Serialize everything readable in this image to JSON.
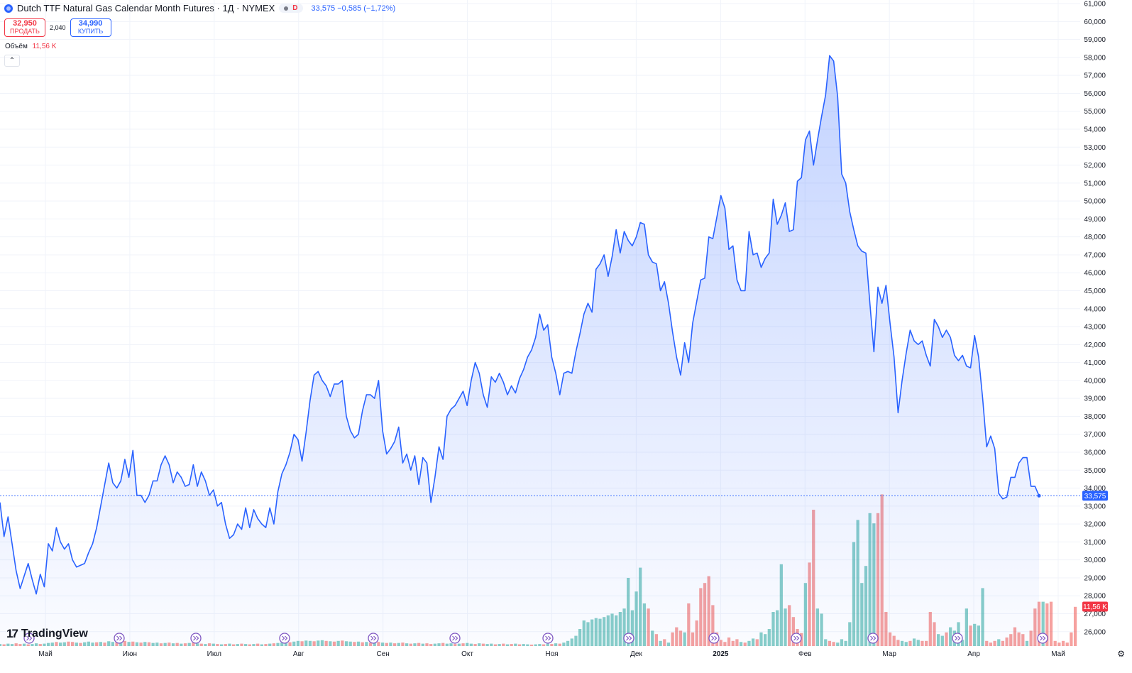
{
  "header": {
    "title": "Dutch TTF Natural Gas Calendar Month Futures · 1Д · NYMEX",
    "status_letter": "D",
    "price_info": "33,575  −0,585 (−1,72%)"
  },
  "trade": {
    "sell_price": "32,950",
    "sell_label": "ПРОДАТЬ",
    "spread": "2,040",
    "buy_price": "34,990",
    "buy_label": "КУПИТЬ"
  },
  "volume_legend": {
    "label": "Объём",
    "value": "11,56 K"
  },
  "collapse_icon": "chevron-up-icon",
  "logo": {
    "text": "TradingView",
    "mark": "17"
  },
  "settings_icon": "gear-icon",
  "colors": {
    "line": "#2962ff",
    "vol_up": "#26a69a",
    "vol_down": "#ef5350",
    "last_price": "#2962ff",
    "vol_badge": "#f23645"
  },
  "chart_data": {
    "type": "area",
    "title": "Dutch TTF Natural Gas Calendar Month Futures · 1Д · NYMEX",
    "ylim": [
      25.2,
      61.2
    ],
    "yticks": [
      "61,000",
      "60,000",
      "59,000",
      "58,000",
      "57,000",
      "56,000",
      "55,000",
      "54,000",
      "53,000",
      "52,000",
      "51,000",
      "50,000",
      "49,000",
      "48,000",
      "47,000",
      "46,000",
      "45,000",
      "44,000",
      "43,000",
      "42,000",
      "41,000",
      "40,000",
      "39,000",
      "38,000",
      "37,000",
      "36,000",
      "35,000",
      "34,000",
      "33,000",
      "32,000",
      "31,000",
      "30,000",
      "29,000",
      "28,000",
      "27,000",
      "26,000"
    ],
    "x_labels": [
      "Май",
      "Июн",
      "Июл",
      "Авг",
      "Сен",
      "Окт",
      "Ноя",
      "Дек",
      "2025",
      "Фев",
      "Мар",
      "Апр",
      "Май"
    ],
    "last_price": 33.575,
    "last_price_label": "33,575",
    "volume_label": "11,56 K",
    "volume_value": 11.56,
    "volume_max": 50,
    "grid": true,
    "series": [
      {
        "values": [
          33.2,
          31.3,
          32.4,
          30.9,
          29.4,
          28.4,
          29.1,
          29.8,
          28.9,
          28.1,
          29.2,
          28.5,
          30.9,
          30.5,
          31.8,
          31.0,
          30.6,
          30.9,
          30.0,
          29.6,
          29.7,
          29.8,
          30.4,
          30.9,
          31.8,
          33.0,
          34.2,
          35.4,
          34.3,
          34.0,
          34.4,
          35.6,
          34.6,
          36.1,
          33.6,
          33.6,
          33.2,
          33.6,
          34.4,
          34.4,
          35.3,
          35.8,
          35.3,
          34.3,
          34.9,
          34.6,
          34.1,
          34.2,
          35.3,
          34.1,
          34.9,
          34.4,
          33.6,
          33.9,
          33.0,
          33.2,
          32.0,
          31.2,
          31.4,
          32.0,
          31.7,
          32.9,
          31.8,
          32.8,
          32.3,
          32.0,
          31.8,
          32.9,
          32.0,
          33.8,
          34.8,
          35.3,
          36.0,
          37.0,
          36.7,
          35.5,
          37.1,
          38.9,
          40.3,
          40.5,
          40.0,
          39.7,
          39.1,
          39.8,
          39.8,
          40.0,
          38.0,
          37.2,
          36.8,
          37.0,
          38.3,
          39.2,
          39.2,
          39.0,
          40.0,
          37.2,
          35.9,
          36.2,
          36.6,
          37.4,
          35.4,
          35.9,
          35.0,
          35.8,
          34.2,
          35.7,
          35.4,
          33.2,
          34.6,
          36.3,
          35.6,
          38.0,
          38.4,
          38.6,
          39.0,
          39.4,
          38.6,
          40.0,
          41.0,
          40.4,
          39.2,
          38.5,
          40.2,
          39.9,
          40.4,
          39.9,
          39.2,
          39.7,
          39.3,
          40.1,
          40.6,
          41.3,
          41.7,
          42.4,
          43.7,
          42.8,
          43.1,
          41.3,
          40.4,
          39.2,
          40.4,
          40.5,
          40.4,
          41.6,
          42.6,
          43.7,
          44.3,
          43.8,
          46.2,
          46.5,
          47.0,
          45.8,
          46.9,
          48.4,
          47.1,
          48.3,
          47.8,
          47.5,
          48.0,
          48.8,
          48.7,
          47.0,
          46.6,
          46.5,
          45.0,
          45.5,
          44.3,
          42.7,
          41.3,
          40.3,
          42.1,
          41.0,
          43.2,
          44.4,
          45.6,
          45.7,
          48.0,
          47.9,
          49.1,
          50.3,
          49.6,
          47.3,
          47.5,
          45.6,
          45.0,
          45.0,
          48.3,
          47.0,
          47.1,
          46.3,
          46.8,
          47.1,
          50.1,
          48.7,
          49.2,
          49.9,
          48.3,
          48.4,
          51.1,
          51.3,
          53.4,
          53.9,
          52.0,
          53.4,
          54.7,
          55.9,
          58.1,
          57.8,
          55.8,
          51.5,
          51.0,
          49.4,
          48.4,
          47.5,
          47.2,
          47.1,
          44.3,
          41.6,
          45.2,
          44.3,
          45.3,
          43.2,
          41.3,
          38.2,
          40.0,
          41.5,
          42.8,
          42.2,
          42.0,
          42.2,
          41.4,
          40.8,
          43.4,
          43.0,
          42.4,
          42.8,
          42.4,
          41.4,
          41.1,
          41.4,
          40.8,
          40.7,
          42.5,
          41.3,
          39.0,
          36.3,
          36.9,
          36.2,
          33.7,
          33.4,
          33.5,
          34.6,
          34.6,
          35.4,
          35.7,
          35.7,
          34.1,
          34.1,
          33.575
        ]
      }
    ],
    "volume": [
      [
        "u",
        0.6
      ],
      [
        "d",
        0.5
      ],
      [
        "u",
        0.7
      ],
      [
        "u",
        0.6
      ],
      [
        "d",
        0.8
      ],
      [
        "d",
        0.6
      ],
      [
        "u",
        0.7
      ],
      [
        "d",
        0.5
      ],
      [
        "u",
        0.6
      ],
      [
        "u",
        0.8
      ],
      [
        "d",
        0.6
      ],
      [
        "u",
        0.7
      ],
      [
        "u",
        0.9
      ],
      [
        "u",
        1.0
      ],
      [
        "d",
        1.2
      ],
      [
        "u",
        1.0
      ],
      [
        "u",
        1.1
      ],
      [
        "d",
        1.3
      ],
      [
        "d",
        1.2
      ],
      [
        "u",
        1.0
      ],
      [
        "d",
        0.9
      ],
      [
        "u",
        1.1
      ],
      [
        "u",
        1.3
      ],
      [
        "u",
        1.0
      ],
      [
        "d",
        1.1
      ],
      [
        "u",
        1.2
      ],
      [
        "d",
        1.0
      ],
      [
        "u",
        1.4
      ],
      [
        "u",
        1.2
      ],
      [
        "d",
        1.1
      ],
      [
        "u",
        1.3
      ],
      [
        "d",
        1.5
      ],
      [
        "u",
        1.2
      ],
      [
        "d",
        1.3
      ],
      [
        "u",
        1.1
      ],
      [
        "d",
        1.0
      ],
      [
        "u",
        1.2
      ],
      [
        "d",
        1.1
      ],
      [
        "u",
        0.9
      ],
      [
        "u",
        1.0
      ],
      [
        "d",
        0.8
      ],
      [
        "u",
        0.9
      ],
      [
        "d",
        1.0
      ],
      [
        "u",
        0.8
      ],
      [
        "d",
        0.9
      ],
      [
        "u",
        0.7
      ],
      [
        "d",
        0.8
      ],
      [
        "u",
        0.9
      ],
      [
        "d",
        1.0
      ],
      [
        "u",
        0.8
      ],
      [
        "d",
        0.7
      ],
      [
        "u",
        0.6
      ],
      [
        "d",
        0.8
      ],
      [
        "u",
        0.7
      ],
      [
        "d",
        0.6
      ],
      [
        "u",
        0.5
      ],
      [
        "d",
        0.6
      ],
      [
        "u",
        0.7
      ],
      [
        "d",
        0.5
      ],
      [
        "u",
        0.6
      ],
      [
        "d",
        0.7
      ],
      [
        "u",
        0.6
      ],
      [
        "d",
        0.5
      ],
      [
        "u",
        0.6
      ],
      [
        "d",
        0.7
      ],
      [
        "u",
        0.5
      ],
      [
        "d",
        0.6
      ],
      [
        "u",
        0.7
      ],
      [
        "d",
        0.8
      ],
      [
        "u",
        0.9
      ],
      [
        "u",
        1.0
      ],
      [
        "u",
        1.2
      ],
      [
        "d",
        1.1
      ],
      [
        "u",
        1.3
      ],
      [
        "u",
        1.5
      ],
      [
        "d",
        1.4
      ],
      [
        "u",
        1.6
      ],
      [
        "u",
        1.5
      ],
      [
        "d",
        1.4
      ],
      [
        "u",
        1.6
      ],
      [
        "u",
        1.7
      ],
      [
        "d",
        1.5
      ],
      [
        "u",
        1.4
      ],
      [
        "d",
        1.3
      ],
      [
        "u",
        1.5
      ],
      [
        "d",
        1.6
      ],
      [
        "u",
        1.4
      ],
      [
        "u",
        1.3
      ],
      [
        "d",
        1.2
      ],
      [
        "u",
        1.3
      ],
      [
        "d",
        1.1
      ],
      [
        "u",
        1.2
      ],
      [
        "d",
        1.0
      ],
      [
        "u",
        1.1
      ],
      [
        "d",
        1.2
      ],
      [
        "u",
        1.0
      ],
      [
        "d",
        0.9
      ],
      [
        "u",
        1.0
      ],
      [
        "d",
        0.8
      ],
      [
        "u",
        0.9
      ],
      [
        "d",
        1.0
      ],
      [
        "u",
        0.8
      ],
      [
        "d",
        0.7
      ],
      [
        "u",
        0.8
      ],
      [
        "d",
        0.9
      ],
      [
        "u",
        0.7
      ],
      [
        "d",
        0.8
      ],
      [
        "d",
        0.6
      ],
      [
        "u",
        0.7
      ],
      [
        "u",
        0.8
      ],
      [
        "d",
        0.9
      ],
      [
        "u",
        0.7
      ],
      [
        "u",
        0.8
      ],
      [
        "d",
        0.6
      ],
      [
        "u",
        0.7
      ],
      [
        "d",
        0.8
      ],
      [
        "u",
        0.9
      ],
      [
        "u",
        0.7
      ],
      [
        "d",
        0.6
      ],
      [
        "u",
        0.8
      ],
      [
        "d",
        0.7
      ],
      [
        "u",
        0.6
      ],
      [
        "u",
        0.7
      ],
      [
        "d",
        0.5
      ],
      [
        "u",
        0.6
      ],
      [
        "d",
        0.7
      ],
      [
        "u",
        0.5
      ],
      [
        "d",
        0.6
      ],
      [
        "u",
        0.7
      ],
      [
        "d",
        0.5
      ],
      [
        "u",
        0.6
      ],
      [
        "u",
        0.5
      ],
      [
        "d",
        0.4
      ],
      [
        "u",
        0.5
      ],
      [
        "u",
        0.6
      ],
      [
        "d",
        0.5
      ],
      [
        "u",
        0.7
      ],
      [
        "d",
        0.6
      ],
      [
        "u",
        0.8
      ],
      [
        "d",
        0.7
      ],
      [
        "u",
        1.0
      ],
      [
        "u",
        1.5
      ],
      [
        "u",
        2.2
      ],
      [
        "u",
        3.0
      ],
      [
        "u",
        5.0
      ],
      [
        "u",
        7.5
      ],
      [
        "u",
        7.0
      ],
      [
        "u",
        7.8
      ],
      [
        "u",
        8.2
      ],
      [
        "u",
        8.0
      ],
      [
        "u",
        8.5
      ],
      [
        "u",
        9.0
      ],
      [
        "u",
        9.5
      ],
      [
        "u",
        9.0
      ],
      [
        "u",
        10.0
      ],
      [
        "u",
        11.0
      ],
      [
        "u",
        20.0
      ],
      [
        "u",
        10.5
      ],
      [
        "u",
        16.0
      ],
      [
        "u",
        23.0
      ],
      [
        "u",
        12.5
      ],
      [
        "d",
        11.0
      ],
      [
        "u",
        4.5
      ],
      [
        "d",
        3.5
      ],
      [
        "u",
        1.5
      ],
      [
        "d",
        2.0
      ],
      [
        "u",
        1.0
      ],
      [
        "d",
        4.0
      ],
      [
        "d",
        5.5
      ],
      [
        "d",
        4.5
      ],
      [
        "u",
        4.0
      ],
      [
        "d",
        12.5
      ],
      [
        "d",
        4.0
      ],
      [
        "d",
        7.5
      ],
      [
        "d",
        17.0
      ],
      [
        "d",
        18.5
      ],
      [
        "d",
        20.5
      ],
      [
        "d",
        12.0
      ],
      [
        "d",
        4.0
      ],
      [
        "d",
        1.8
      ],
      [
        "d",
        1.2
      ],
      [
        "d",
        2.5
      ],
      [
        "d",
        1.5
      ],
      [
        "d",
        2.0
      ],
      [
        "u",
        1.2
      ],
      [
        "d",
        1.0
      ],
      [
        "u",
        1.5
      ],
      [
        "u",
        2.2
      ],
      [
        "d",
        2.0
      ],
      [
        "u",
        4.0
      ],
      [
        "u",
        3.5
      ],
      [
        "u",
        5.0
      ],
      [
        "u",
        10.0
      ],
      [
        "u",
        10.5
      ],
      [
        "u",
        24.0
      ],
      [
        "u",
        11.0
      ],
      [
        "d",
        12.0
      ],
      [
        "d",
        8.5
      ],
      [
        "d",
        5.0
      ],
      [
        "d",
        3.8
      ],
      [
        "u",
        18.5
      ],
      [
        "d",
        24.5
      ],
      [
        "d",
        40.0
      ],
      [
        "u",
        11.0
      ],
      [
        "u",
        9.5
      ],
      [
        "u",
        2.0
      ],
      [
        "d",
        1.5
      ],
      [
        "d",
        1.2
      ],
      [
        "u",
        1.0
      ],
      [
        "u",
        2.0
      ],
      [
        "u",
        1.5
      ],
      [
        "u",
        7.0
      ],
      [
        "u",
        30.5
      ],
      [
        "u",
        37.0
      ],
      [
        "u",
        18.5
      ],
      [
        "u",
        23.5
      ],
      [
        "u",
        39.0
      ],
      [
        "u",
        36.0
      ],
      [
        "d",
        39.0
      ],
      [
        "d",
        44.5
      ],
      [
        "d",
        10.0
      ],
      [
        "d",
        4.0
      ],
      [
        "d",
        3.0
      ],
      [
        "d",
        1.8
      ],
      [
        "u",
        1.5
      ],
      [
        "u",
        1.2
      ],
      [
        "d",
        1.5
      ],
      [
        "u",
        2.2
      ],
      [
        "u",
        1.8
      ],
      [
        "d",
        1.5
      ],
      [
        "d",
        1.5
      ],
      [
        "d",
        10.0
      ],
      [
        "d",
        7.0
      ],
      [
        "u",
        3.5
      ],
      [
        "u",
        3.0
      ],
      [
        "d",
        4.0
      ],
      [
        "u",
        5.5
      ],
      [
        "u",
        4.5
      ],
      [
        "u",
        7.0
      ],
      [
        "u",
        1.8
      ],
      [
        "u",
        11.0
      ],
      [
        "d",
        6.0
      ],
      [
        "u",
        6.5
      ],
      [
        "u",
        6.0
      ],
      [
        "u",
        17.0
      ],
      [
        "d",
        1.5
      ],
      [
        "d",
        1.0
      ],
      [
        "d",
        1.5
      ],
      [
        "u",
        2.0
      ],
      [
        "d",
        1.5
      ],
      [
        "d",
        2.5
      ],
      [
        "d",
        3.5
      ],
      [
        "d",
        5.5
      ],
      [
        "d",
        4.0
      ],
      [
        "d",
        3.5
      ],
      [
        "u",
        1.5
      ],
      [
        "d",
        4.5
      ],
      [
        "d",
        11.0
      ],
      [
        "d",
        13.0
      ],
      [
        "u",
        13.0
      ],
      [
        "d",
        12.5
      ],
      [
        "d",
        13.0
      ],
      [
        "d",
        1.5
      ],
      [
        "d",
        1.0
      ],
      [
        "d",
        1.5
      ],
      [
        "d",
        1.0
      ],
      [
        "d",
        4.0
      ],
      [
        "d",
        11.5
      ]
    ],
    "event_icons": 15
  }
}
